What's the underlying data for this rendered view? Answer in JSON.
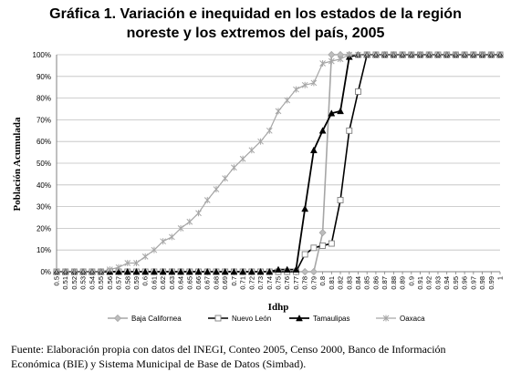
{
  "chart_data": {
    "type": "line",
    "title_lines": [
      "Gráfica 1. Variación e inequidad en los estados de la región",
      "noreste y los extremos del país, 2005"
    ],
    "xlabel": "Idhp",
    "ylabel": "Población Acumulada",
    "x": [
      0.5,
      0.51,
      0.52,
      0.53,
      0.54,
      0.55,
      0.56,
      0.57,
      0.58,
      0.59,
      0.6,
      0.61,
      0.62,
      0.63,
      0.64,
      0.65,
      0.66,
      0.67,
      0.68,
      0.69,
      0.7,
      0.71,
      0.72,
      0.73,
      0.74,
      0.75,
      0.76,
      0.77,
      0.78,
      0.79,
      0.8,
      0.81,
      0.82,
      0.83,
      0.84,
      0.85,
      0.86,
      0.87,
      0.88,
      0.89,
      0.9,
      0.91,
      0.92,
      0.93,
      0.94,
      0.95,
      0.96,
      0.97,
      0.98,
      0.99,
      1
    ],
    "x_tick_labels": [
      "0.5",
      "0.51",
      "0.52",
      "0.53",
      "0.54",
      "0.55",
      "0.56",
      "0.57",
      "0.58",
      "0.59",
      "0.6",
      "0.61",
      "0.62",
      "0.63",
      "0.64",
      "0.65",
      "0.66",
      "0.67",
      "0.68",
      "0.69",
      "0.7",
      "0.71",
      "0.72",
      "0.73",
      "0.74",
      "0.75",
      "0.76",
      "0.77",
      "0.78",
      "0.79",
      "0.8",
      "0.81",
      "0.82",
      "0.83",
      "0.84",
      "0.85",
      "0.86",
      "0.87",
      "0.88",
      "0.89",
      "0.9",
      "0.91",
      "0.92",
      "0.93",
      "0.94",
      "0.95",
      "0.96",
      "0.97",
      "0.98",
      "0.99",
      "1"
    ],
    "y_tick_labels": [
      "0%",
      "10%",
      "20%",
      "30%",
      "40%",
      "50%",
      "60%",
      "70%",
      "80%",
      "90%",
      "100%"
    ],
    "ylim": [
      0,
      100
    ],
    "grid": "horizontal",
    "legend_position": "bottom",
    "series": [
      {
        "name": "Baja Californea",
        "color": "#a6a6a6",
        "marker": "diamond",
        "values": [
          0,
          0,
          0,
          0,
          0,
          0,
          0,
          0,
          0,
          0,
          0,
          0,
          0,
          0,
          0,
          0,
          0,
          0,
          0,
          0,
          0,
          0,
          0,
          0,
          0,
          0,
          0,
          0,
          0,
          0,
          18,
          100,
          100,
          100,
          100,
          100,
          100,
          100,
          100,
          100,
          100,
          100,
          100,
          100,
          100,
          100,
          100,
          100,
          100,
          100,
          100
        ]
      },
      {
        "name": "Nuevo León",
        "color": "#000000",
        "marker": "square",
        "values": [
          0,
          0,
          0,
          0,
          0,
          0,
          0,
          0,
          0,
          0,
          0,
          0,
          0,
          0,
          0,
          0,
          0,
          0,
          0,
          0,
          0,
          0,
          0,
          0,
          0,
          0,
          0,
          0,
          8,
          11,
          12,
          13,
          33,
          65,
          83,
          100,
          100,
          100,
          100,
          100,
          100,
          100,
          100,
          100,
          100,
          100,
          100,
          100,
          100,
          100,
          100
        ]
      },
      {
        "name": "Tamaulipas",
        "color": "#000000",
        "marker": "triangle",
        "values": [
          0,
          0,
          0,
          0,
          0,
          0,
          0,
          0,
          0,
          0,
          0,
          0,
          0,
          0,
          0,
          0,
          0,
          0,
          0,
          0,
          0,
          0,
          0,
          0,
          0,
          1,
          1,
          1,
          29,
          56,
          65,
          73,
          74,
          99,
          100,
          100,
          100,
          100,
          100,
          100,
          100,
          100,
          100,
          100,
          100,
          100,
          100,
          100,
          100,
          100,
          100
        ]
      },
      {
        "name": "Oaxaca",
        "color": "#a6a6a6",
        "marker": "star",
        "values": [
          0,
          0,
          0,
          0,
          0,
          0,
          1,
          2,
          4,
          4,
          7,
          10,
          14,
          16,
          20,
          23,
          27,
          33,
          38,
          43,
          48,
          52,
          56,
          60,
          65,
          74,
          79,
          84,
          86,
          87,
          96,
          97,
          98,
          100,
          100,
          100,
          100,
          100,
          100,
          100,
          100,
          100,
          100,
          100,
          100,
          100,
          100,
          100,
          100,
          100,
          100
        ]
      }
    ]
  },
  "source_lines": [
    "Fuente: Elaboración propia con datos del INEGI, Conteo 2005, Censo 2000, Banco de Información",
    "Económica (BIE) y Sistema Municipal de Base de Datos (Simbad)."
  ]
}
